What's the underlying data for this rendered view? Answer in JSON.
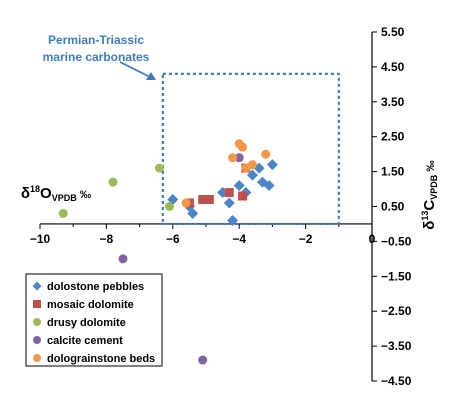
{
  "chart_data": {
    "type": "scatter",
    "x_ticks": [
      -10,
      -8,
      -6,
      -4,
      -2,
      0
    ],
    "y_ticks": [
      5.5,
      4.5,
      3.5,
      2.5,
      1.5,
      0.5,
      -0.5,
      -1.5,
      -2.5,
      -3.5,
      -4.5
    ],
    "x_tick_labels": [
      "−10",
      "−8",
      "−6",
      "−4",
      "−2",
      "0"
    ],
    "y_tick_labels": [
      "5.50",
      "4.50",
      "3.50",
      "2.50",
      "1.50",
      "0.50",
      "−0.50",
      "−1.50",
      "−2.50",
      "−3.50",
      "−4.50"
    ],
    "xlim": [
      -10,
      0
    ],
    "ylim": [
      -4.5,
      5.5
    ],
    "x_label": {
      "main": "δ",
      "sup": "18",
      "main2": "O",
      "sub": "VPDB",
      "suffix": " ‰"
    },
    "y_label": {
      "main": "δ",
      "sup": "13",
      "main2": "C",
      "sub": "VPDB",
      "suffix": " ‰"
    },
    "grid": false,
    "legend_position": "bottom-left",
    "annotation": {
      "lines": [
        "Permian-Triassic",
        "marine carbonates"
      ],
      "box": {
        "x": [
          -6.3,
          -1.0
        ],
        "y": [
          0.0,
          4.3
        ]
      },
      "color": "#3d7cc2"
    },
    "series": [
      {
        "name": "dolostone pebbles",
        "marker": "diamond",
        "color": "#4a86c8",
        "points": [
          [
            -6.0,
            0.7
          ],
          [
            -5.5,
            0.5
          ],
          [
            -5.4,
            0.3
          ],
          [
            -4.5,
            0.9
          ],
          [
            -4.3,
            0.6
          ],
          [
            -4.2,
            0.1
          ],
          [
            -4.0,
            1.1
          ],
          [
            -3.8,
            0.9
          ],
          [
            -3.6,
            1.4
          ],
          [
            -3.4,
            1.6
          ],
          [
            -3.3,
            1.2
          ],
          [
            -3.0,
            1.7
          ],
          [
            -3.1,
            1.1
          ]
        ]
      },
      {
        "name": "mosaic dolomite",
        "marker": "square",
        "color": "#c0504d",
        "points": [
          [
            -5.5,
            0.6
          ],
          [
            -5.1,
            0.7
          ],
          [
            -4.9,
            0.7
          ],
          [
            -4.3,
            0.9
          ],
          [
            -3.9,
            0.8
          ],
          [
            -3.8,
            1.6
          ]
        ]
      },
      {
        "name": "drusy dolomite",
        "marker": "circle",
        "color": "#9bbb59",
        "points": [
          [
            -9.3,
            0.3
          ],
          [
            -7.8,
            1.2
          ],
          [
            -6.4,
            1.6
          ],
          [
            -6.1,
            0.5
          ]
        ]
      },
      {
        "name": "calcite cement",
        "marker": "circle",
        "color": "#8064a2",
        "points": [
          [
            -7.5,
            -1.0
          ],
          [
            -5.1,
            -3.9
          ],
          [
            -4.0,
            1.9
          ]
        ]
      },
      {
        "name": "dolograinstone beds",
        "marker": "circle",
        "color": "#f79646",
        "points": [
          [
            -5.6,
            0.6
          ],
          [
            -4.2,
            1.9
          ],
          [
            -4.0,
            2.3
          ],
          [
            -3.9,
            2.2
          ],
          [
            -3.8,
            1.6
          ],
          [
            -3.6,
            1.7
          ],
          [
            -3.2,
            2.0
          ]
        ]
      }
    ]
  }
}
